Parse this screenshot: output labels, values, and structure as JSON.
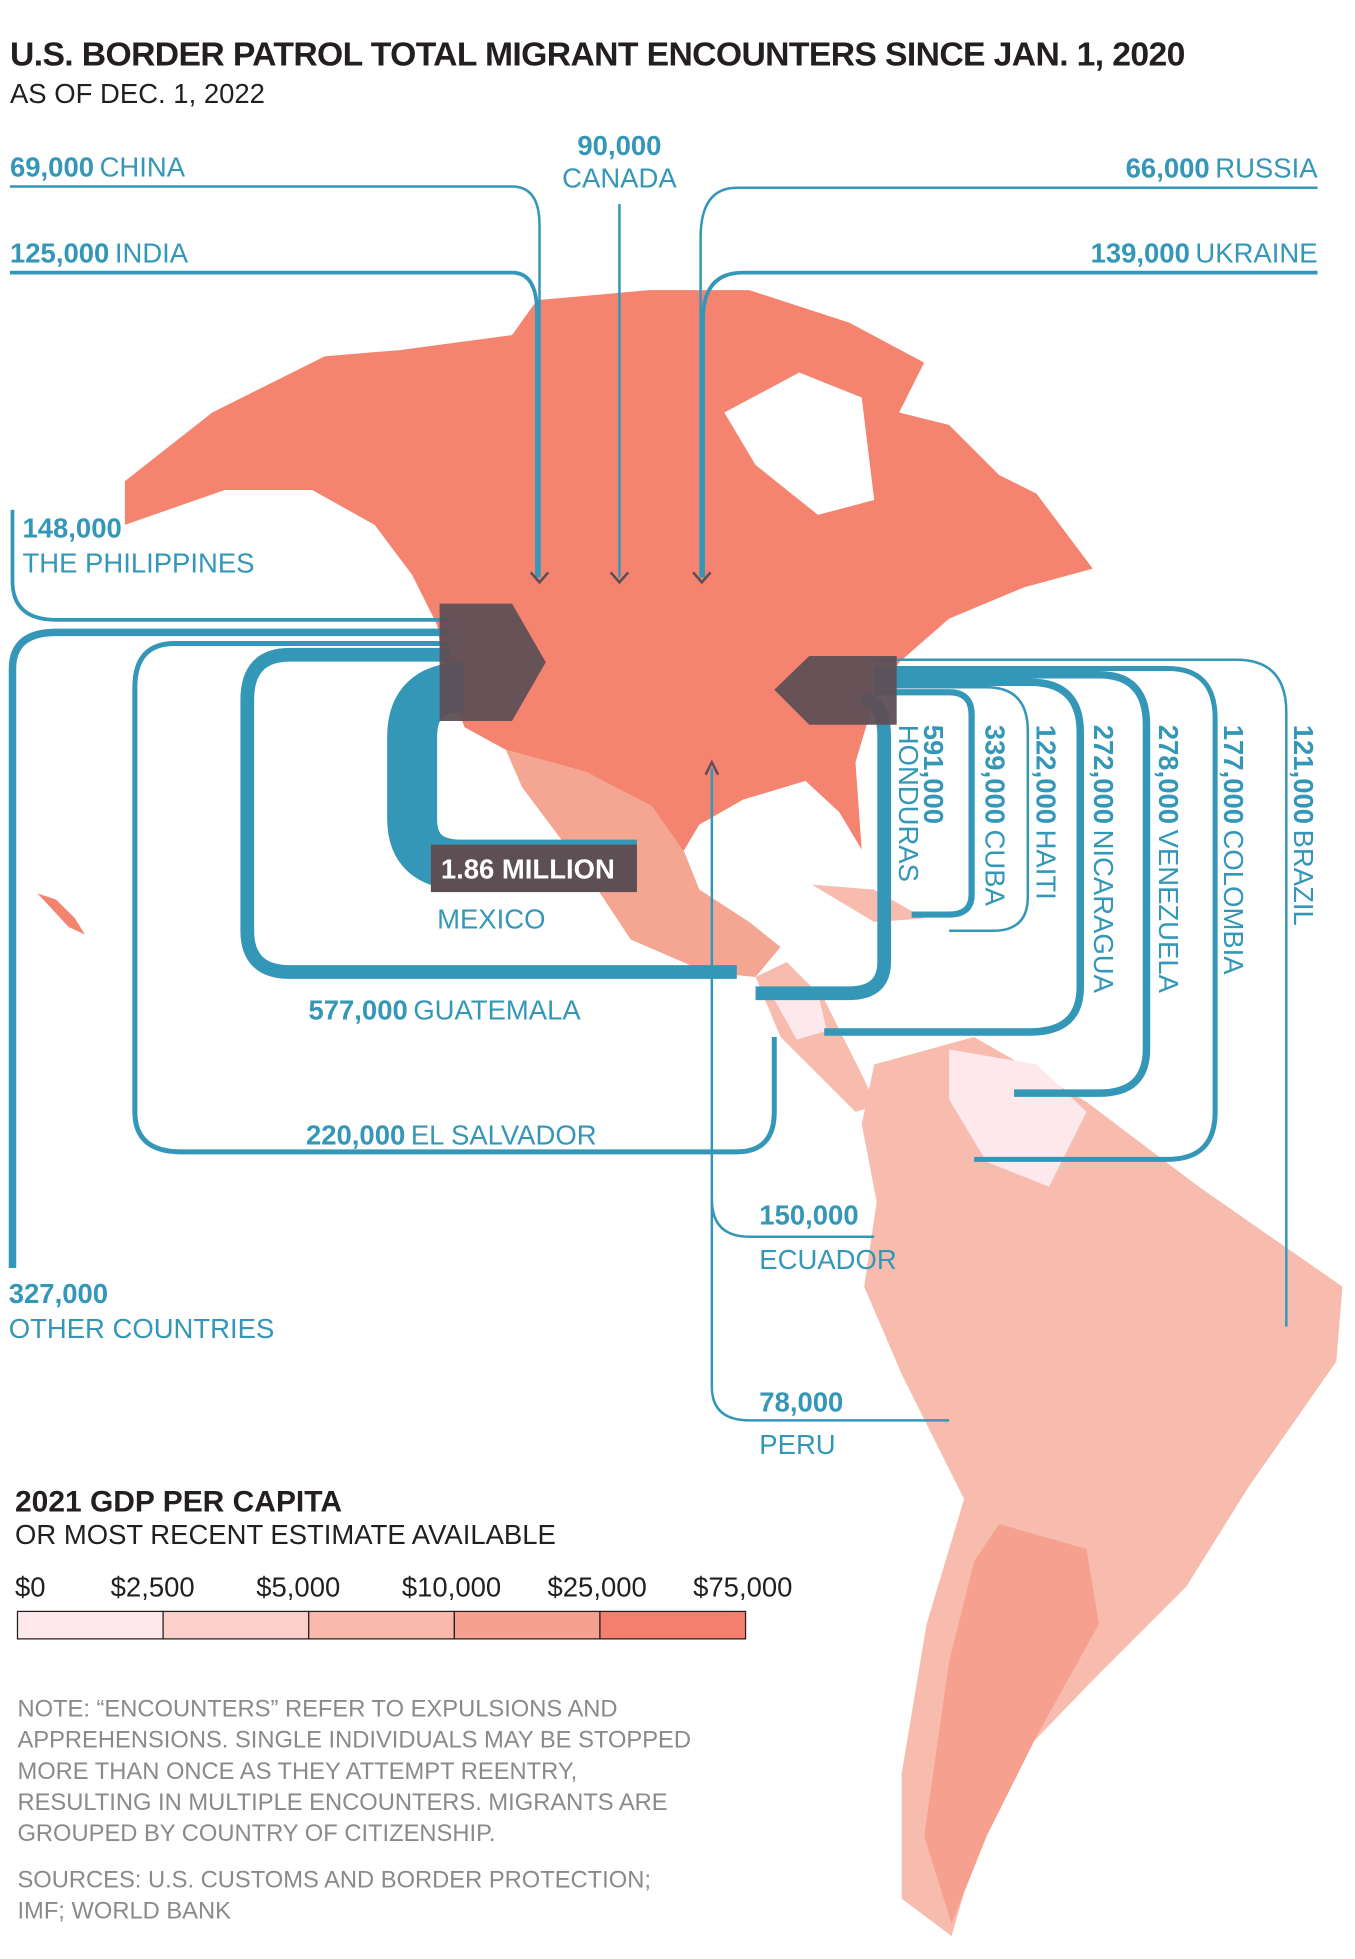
{
  "title": "U.S. BORDER PATROL TOTAL MIGRANT ENCOUNTERS SINCE JAN. 1, 2020",
  "subtitle": "AS OF DEC. 1, 2022",
  "colors": {
    "flow": "#3497b8",
    "arrow": "#5e4f55",
    "text": "#231f20",
    "note": "#8a8a8a"
  },
  "flows": [
    {
      "value": "69,000",
      "country": "CHINA"
    },
    {
      "value": "125,000",
      "country": "INDIA"
    },
    {
      "value": "90,000",
      "country": "CANADA"
    },
    {
      "value": "66,000",
      "country": "RUSSIA"
    },
    {
      "value": "139,000",
      "country": "UKRAINE"
    },
    {
      "value": "148,000",
      "country": "THE PHILIPPINES"
    },
    {
      "value": "327,000",
      "country": "OTHER COUNTRIES"
    },
    {
      "value": "220,000",
      "country": "EL SALVADOR"
    },
    {
      "value": "577,000",
      "country": "GUATEMALA"
    },
    {
      "value": "1.86 MILLION",
      "country": "MEXICO"
    },
    {
      "value": "591,000",
      "country": "HONDURAS"
    },
    {
      "value": "339,000",
      "country": "CUBA"
    },
    {
      "value": "122,000",
      "country": "HAITI"
    },
    {
      "value": "272,000",
      "country": "NICARAGUA"
    },
    {
      "value": "278,000",
      "country": "VENEZUELA"
    },
    {
      "value": "177,000",
      "country": "COLOMBIA"
    },
    {
      "value": "121,000",
      "country": "BRAZIL"
    },
    {
      "value": "150,000",
      "country": "ECUADOR"
    },
    {
      "value": "78,000",
      "country": "PERU"
    }
  ],
  "legend": {
    "title": "2021 GDP PER CAPITA",
    "subtitle": "OR MOST RECENT ESTIMATE AVAILABLE",
    "ticks": [
      "$0",
      "$2,500",
      "$5,000",
      "$10,000",
      "$25,000",
      "$75,000"
    ],
    "colors": [
      "#fde8ec",
      "#fbd0cb",
      "#f9b9ab",
      "#f6a08f",
      "#f47f6f"
    ]
  },
  "note": [
    "NOTE: “ENCOUNTERS” REFER TO EXPULSIONS AND",
    "APPREHENSIONS. SINGLE INDIVIDUALS MAY BE STOPPED",
    "MORE THAN ONCE AS THEY ATTEMPT REENTRY,",
    "RESULTING IN MULTIPLE ENCOUNTERS. MIGRANTS ARE",
    "GROUPED BY COUNTRY OF CITIZENSHIP."
  ],
  "sources": [
    "SOURCES: U.S. CUSTOMS AND BORDER PROTECTION;",
    "IMF; WORLD BANK"
  ]
}
